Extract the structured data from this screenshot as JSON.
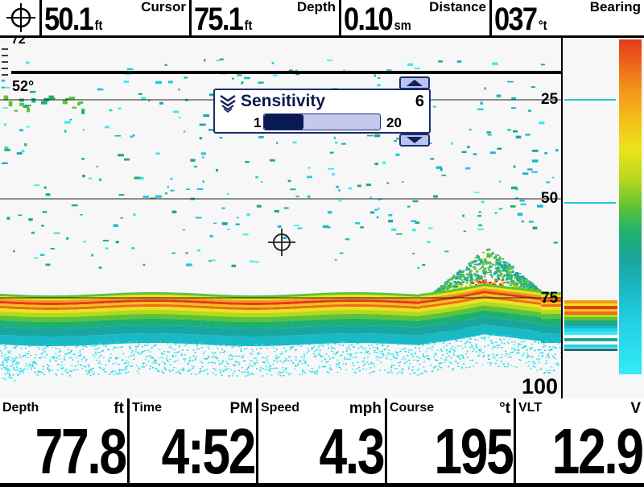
{
  "top_bar": {
    "cursor": {
      "value": "50.1",
      "unit": "ft",
      "label": "Cursor"
    },
    "depth": {
      "value": "75.1",
      "unit": "ft",
      "label": "Depth"
    },
    "distance": {
      "value": "0.10",
      "unit": "sm",
      "label": "Distance"
    },
    "bearing": {
      "value": "037",
      "unit": "°t",
      "label": "Bearing"
    }
  },
  "sonar": {
    "partial_label": "72",
    "temperature": "52°",
    "depth_scale": [
      "25",
      "50",
      "75",
      "100"
    ]
  },
  "sensitivity_popup": {
    "title": "Sensitivity",
    "value": 6,
    "value_text": "6",
    "min": "1",
    "max": "20"
  },
  "bottom_bar": [
    {
      "label": "Depth",
      "unit": "ft",
      "value": "77.8"
    },
    {
      "label": "Time",
      "unit": "PM",
      "value": "4:52"
    },
    {
      "label": "Speed",
      "unit": "mph",
      "value": "4.3"
    },
    {
      "label": "Course",
      "unit": "°t",
      "value": "195"
    },
    {
      "label": "VLT",
      "unit": "V",
      "value": "12.9"
    }
  ],
  "icons": {
    "cursor": "crosshair-icon",
    "sensitivity": "sensitivity-icon"
  }
}
